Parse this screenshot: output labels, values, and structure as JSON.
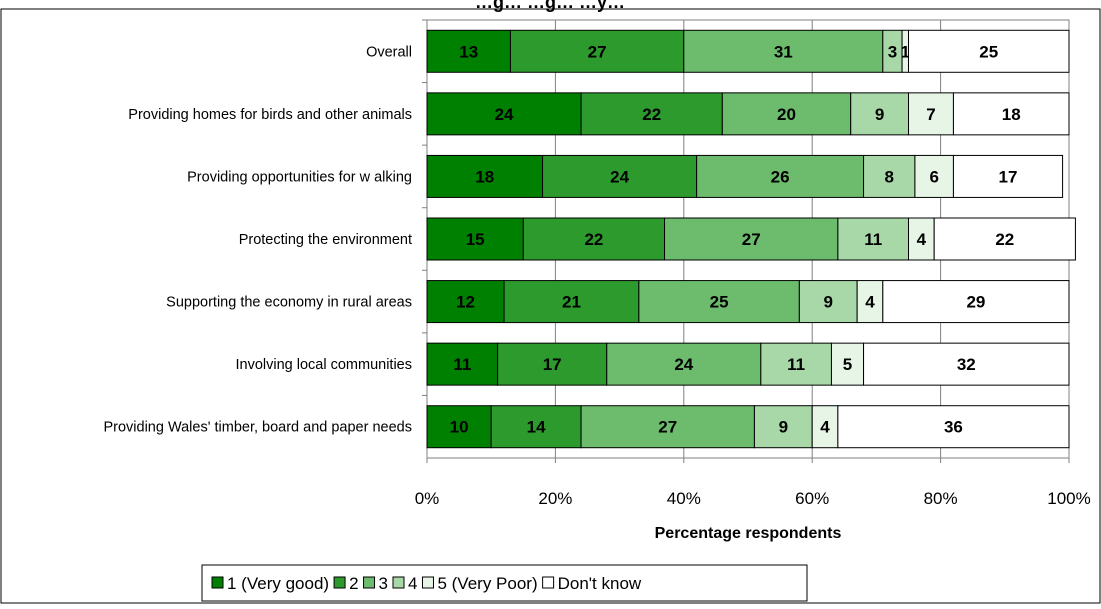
{
  "chart_data": {
    "type": "bar",
    "orientation": "horizontal",
    "stacked": true,
    "title": "…g… …g… …y…",
    "xlabel": "Percentage respondents",
    "ylabel": "",
    "xlim": [
      0,
      100
    ],
    "x_ticks": [
      "0%",
      "20%",
      "40%",
      "60%",
      "80%",
      "100%"
    ],
    "grid": "vertical",
    "legend_position": "bottom",
    "categories": [
      "Overall",
      "Providing homes for birds and other animals",
      "Providing opportunities for w alking",
      "Protecting the environment",
      "Supporting the economy in rural areas",
      "Involving local communities",
      "Providing Wales' timber, board and paper needs"
    ],
    "series": [
      {
        "name": "1 (Very good)",
        "color": "#008000",
        "values": [
          13,
          24,
          18,
          15,
          12,
          11,
          10
        ]
      },
      {
        "name": "2",
        "color": "#2d9a2d",
        "values": [
          27,
          22,
          24,
          22,
          21,
          17,
          14
        ]
      },
      {
        "name": "3",
        "color": "#6dbb6d",
        "values": [
          31,
          20,
          26,
          27,
          25,
          24,
          27
        ]
      },
      {
        "name": "4",
        "color": "#a8d8a8",
        "values": [
          3,
          9,
          8,
          11,
          9,
          11,
          9
        ]
      },
      {
        "name": "5 (Very Poor)",
        "color": "#e6f5e6",
        "values": [
          1,
          7,
          6,
          4,
          4,
          5,
          4
        ]
      },
      {
        "name": "Don't know",
        "color": "#ffffff",
        "values": [
          25,
          18,
          17,
          22,
          29,
          32,
          36
        ]
      }
    ]
  }
}
